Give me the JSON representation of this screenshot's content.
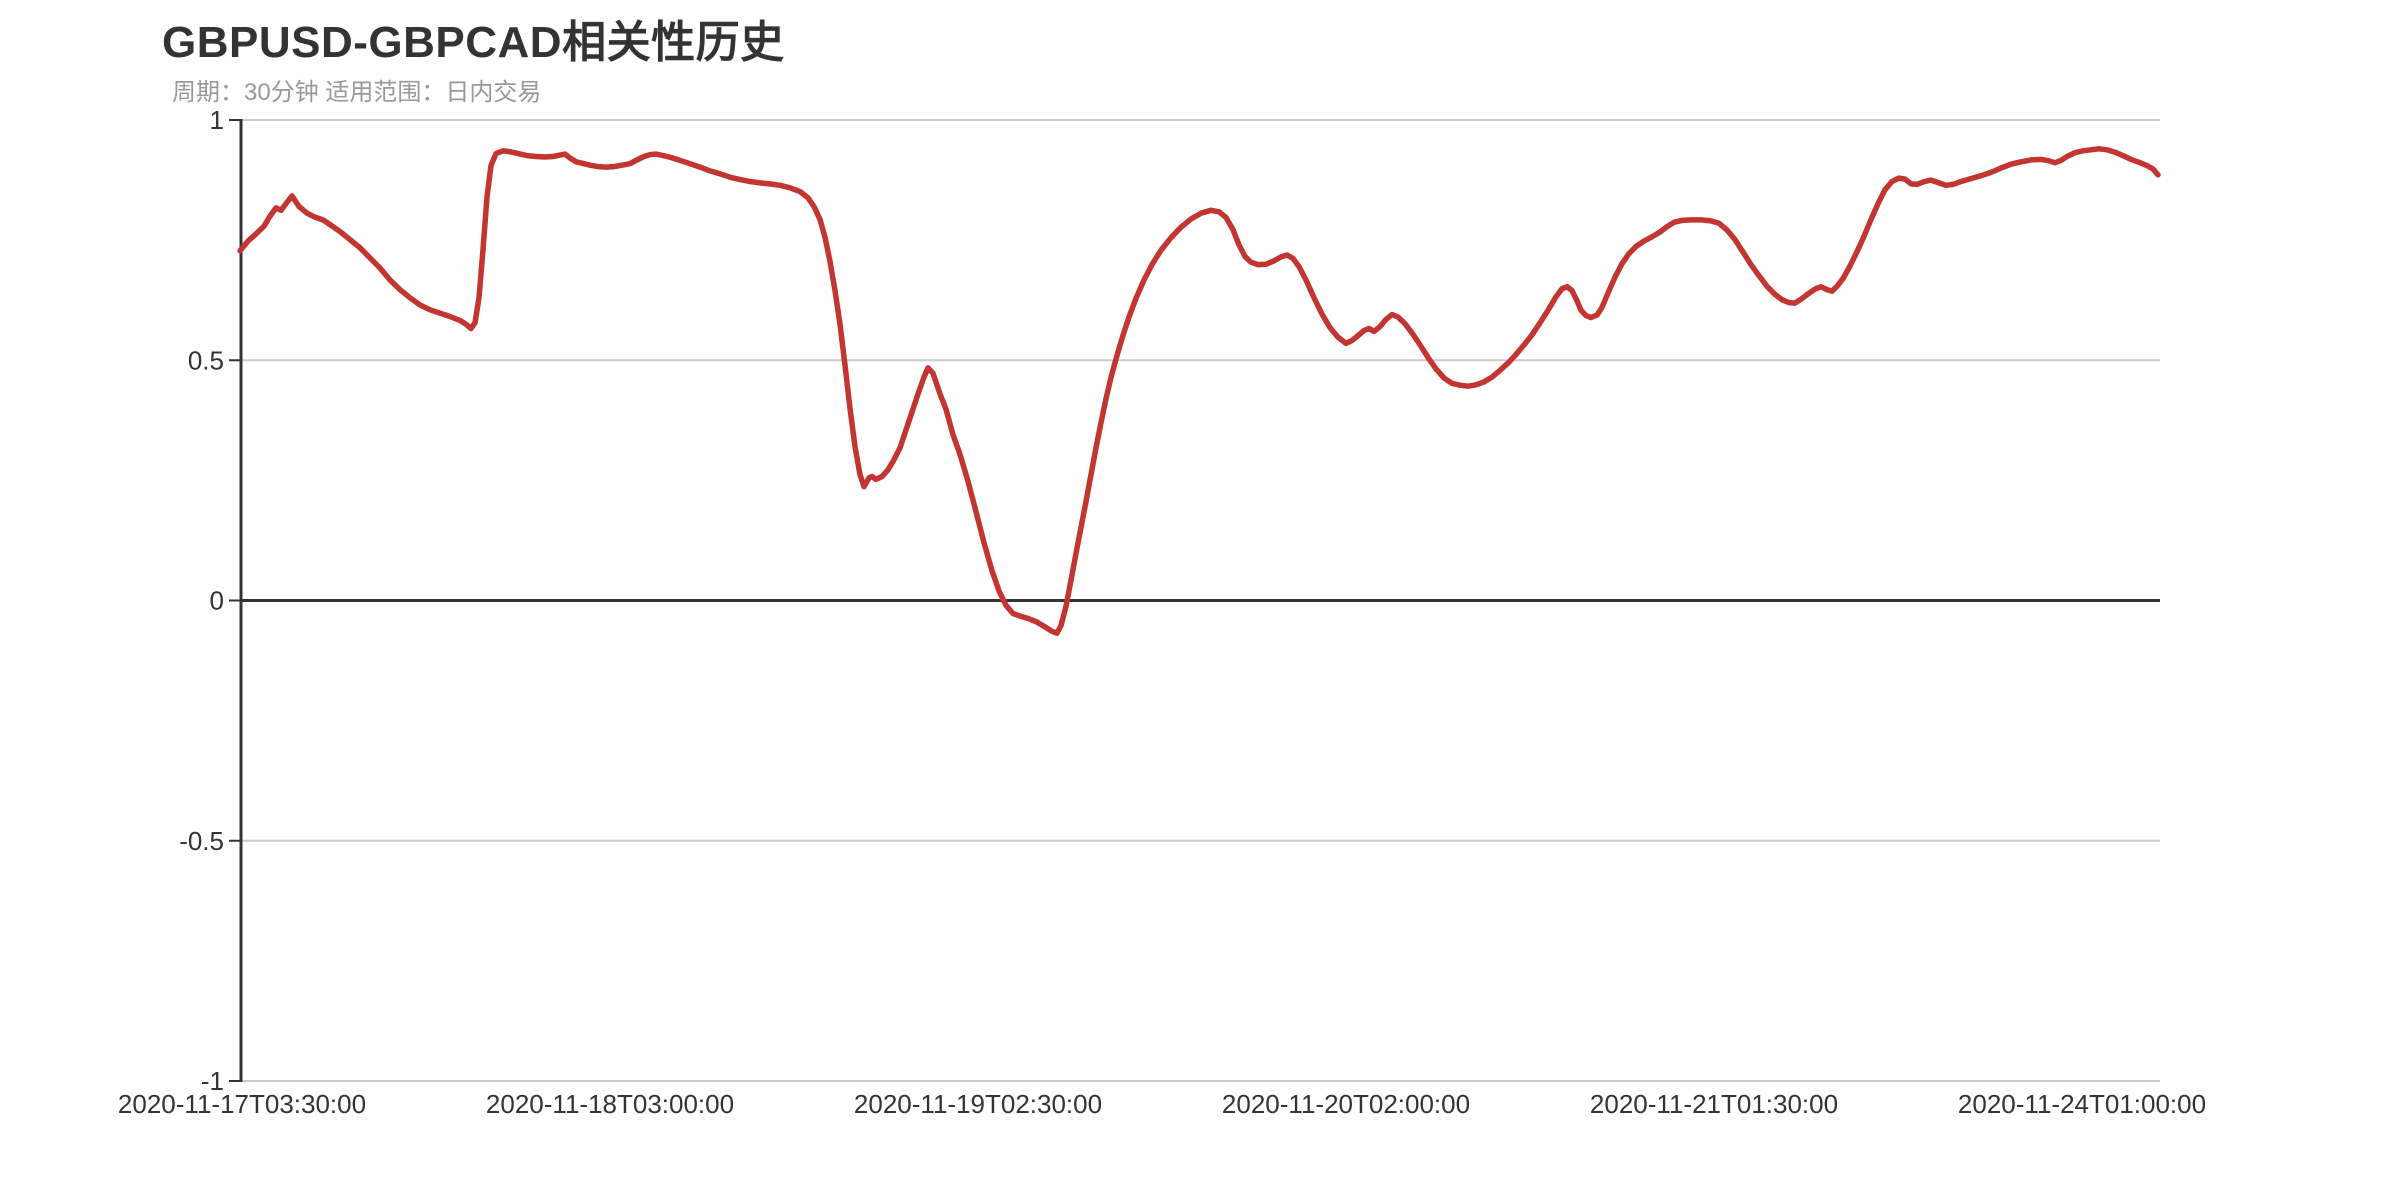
{
  "title": "GBPUSD-GBPCAD相关性历史",
  "subtitle": "周期：30分钟 适用范围：日内交易",
  "colors": {
    "line": "#c23531",
    "title_text": "#333333",
    "subtitle_text": "#999999",
    "axis_text": "#333333",
    "grid_line": "#cccccc",
    "axis_line": "#333333",
    "zero_line": "#333333",
    "background": "#ffffff"
  },
  "chart_data": {
    "type": "line",
    "title": "GBPUSD-GBPCAD相关性历史",
    "subtitle": "周期：30分钟 适用范围：日内交易",
    "xlabel": "",
    "ylabel": "",
    "ylim": [
      -1,
      1
    ],
    "grid": true,
    "legend_position": "none",
    "x_tick_labels": [
      "2020-11-17T03:30:00",
      "2020-11-18T03:00:00",
      "2020-11-19T02:30:00",
      "2020-11-20T02:00:00",
      "2020-11-21T01:30:00",
      "2020-11-24T01:00:00"
    ],
    "y_ticks": [
      {
        "label": "1",
        "value": 1
      },
      {
        "label": "0.5",
        "value": 0.5
      },
      {
        "label": "0",
        "value": 0
      },
      {
        "label": "-0.5",
        "value": -0.5
      },
      {
        "label": "-1",
        "value": -1
      }
    ],
    "series": [
      {
        "name": "GBPUSD-GBPCAD相关性",
        "color": "#c23531",
        "x_unit": "px",
        "points": [
          [
            240,
            0.728
          ],
          [
            248,
            0.748
          ],
          [
            256,
            0.763
          ],
          [
            264,
            0.779
          ],
          [
            270,
            0.8
          ],
          [
            276,
            0.817
          ],
          [
            281,
            0.812
          ],
          [
            286,
            0.826
          ],
          [
            292,
            0.842
          ],
          [
            299,
            0.82
          ],
          [
            307,
            0.806
          ],
          [
            315,
            0.798
          ],
          [
            323,
            0.792
          ],
          [
            331,
            0.781
          ],
          [
            340,
            0.768
          ],
          [
            350,
            0.751
          ],
          [
            360,
            0.734
          ],
          [
            370,
            0.713
          ],
          [
            380,
            0.692
          ],
          [
            390,
            0.667
          ],
          [
            400,
            0.647
          ],
          [
            410,
            0.63
          ],
          [
            420,
            0.615
          ],
          [
            430,
            0.605
          ],
          [
            440,
            0.598
          ],
          [
            450,
            0.591
          ],
          [
            460,
            0.583
          ],
          [
            466,
            0.575
          ],
          [
            471,
            0.566
          ],
          [
            475,
            0.578
          ],
          [
            479,
            0.63
          ],
          [
            483,
            0.73
          ],
          [
            487,
            0.84
          ],
          [
            491,
            0.905
          ],
          [
            496,
            0.93
          ],
          [
            503,
            0.936
          ],
          [
            510,
            0.934
          ],
          [
            518,
            0.93
          ],
          [
            527,
            0.926
          ],
          [
            536,
            0.924
          ],
          [
            545,
            0.923
          ],
          [
            553,
            0.924
          ],
          [
            560,
            0.927
          ],
          [
            565,
            0.929
          ],
          [
            570,
            0.921
          ],
          [
            576,
            0.913
          ],
          [
            582,
            0.91
          ],
          [
            590,
            0.906
          ],
          [
            598,
            0.903
          ],
          [
            606,
            0.902
          ],
          [
            614,
            0.903
          ],
          [
            622,
            0.906
          ],
          [
            630,
            0.909
          ],
          [
            637,
            0.917
          ],
          [
            644,
            0.924
          ],
          [
            650,
            0.928
          ],
          [
            656,
            0.929
          ],
          [
            663,
            0.926
          ],
          [
            671,
            0.922
          ],
          [
            680,
            0.916
          ],
          [
            690,
            0.909
          ],
          [
            700,
            0.902
          ],
          [
            710,
            0.894
          ],
          [
            720,
            0.888
          ],
          [
            730,
            0.881
          ],
          [
            740,
            0.876
          ],
          [
            750,
            0.872
          ],
          [
            760,
            0.869
          ],
          [
            770,
            0.867
          ],
          [
            780,
            0.864
          ],
          [
            790,
            0.859
          ],
          [
            800,
            0.851
          ],
          [
            808,
            0.838
          ],
          [
            814,
            0.82
          ],
          [
            820,
            0.793
          ],
          [
            825,
            0.756
          ],
          [
            830,
            0.706
          ],
          [
            835,
            0.645
          ],
          [
            840,
            0.575
          ],
          [
            845,
            0.49
          ],
          [
            850,
            0.4
          ],
          [
            855,
            0.32
          ],
          [
            860,
            0.262
          ],
          [
            864,
            0.237
          ],
          [
            869,
            0.255
          ],
          [
            872,
            0.258
          ],
          [
            876,
            0.252
          ],
          [
            882,
            0.258
          ],
          [
            888,
            0.272
          ],
          [
            894,
            0.293
          ],
          [
            900,
            0.318
          ],
          [
            906,
            0.355
          ],
          [
            912,
            0.392
          ],
          [
            918,
            0.43
          ],
          [
            924,
            0.465
          ],
          [
            928,
            0.484
          ],
          [
            933,
            0.473
          ],
          [
            940,
            0.43
          ],
          [
            946,
            0.398
          ],
          [
            953,
            0.345
          ],
          [
            960,
            0.304
          ],
          [
            968,
            0.248
          ],
          [
            976,
            0.185
          ],
          [
            984,
            0.12
          ],
          [
            992,
            0.062
          ],
          [
            999,
            0.02
          ],
          [
            1006,
            -0.01
          ],
          [
            1013,
            -0.027
          ],
          [
            1021,
            -0.033
          ],
          [
            1029,
            -0.038
          ],
          [
            1037,
            -0.045
          ],
          [
            1045,
            -0.055
          ],
          [
            1052,
            -0.064
          ],
          [
            1057,
            -0.068
          ],
          [
            1061,
            -0.052
          ],
          [
            1066,
            -0.012
          ],
          [
            1071,
            0.042
          ],
          [
            1076,
            0.098
          ],
          [
            1081,
            0.152
          ],
          [
            1086,
            0.206
          ],
          [
            1091,
            0.262
          ],
          [
            1096,
            0.318
          ],
          [
            1101,
            0.37
          ],
          [
            1106,
            0.42
          ],
          [
            1111,
            0.464
          ],
          [
            1117,
            0.51
          ],
          [
            1123,
            0.552
          ],
          [
            1129,
            0.59
          ],
          [
            1136,
            0.629
          ],
          [
            1144,
            0.667
          ],
          [
            1152,
            0.699
          ],
          [
            1161,
            0.729
          ],
          [
            1171,
            0.755
          ],
          [
            1181,
            0.777
          ],
          [
            1191,
            0.794
          ],
          [
            1201,
            0.806
          ],
          [
            1211,
            0.812
          ],
          [
            1219,
            0.809
          ],
          [
            1226,
            0.797
          ],
          [
            1233,
            0.772
          ],
          [
            1239,
            0.74
          ],
          [
            1245,
            0.716
          ],
          [
            1251,
            0.704
          ],
          [
            1258,
            0.699
          ],
          [
            1266,
            0.7
          ],
          [
            1274,
            0.707
          ],
          [
            1281,
            0.715
          ],
          [
            1287,
            0.719
          ],
          [
            1293,
            0.712
          ],
          [
            1299,
            0.695
          ],
          [
            1306,
            0.667
          ],
          [
            1314,
            0.63
          ],
          [
            1322,
            0.596
          ],
          [
            1330,
            0.568
          ],
          [
            1338,
            0.548
          ],
          [
            1346,
            0.535
          ],
          [
            1352,
            0.541
          ],
          [
            1358,
            0.551
          ],
          [
            1364,
            0.562
          ],
          [
            1369,
            0.566
          ],
          [
            1374,
            0.56
          ],
          [
            1380,
            0.57
          ],
          [
            1386,
            0.585
          ],
          [
            1392,
            0.595
          ],
          [
            1398,
            0.59
          ],
          [
            1405,
            0.576
          ],
          [
            1412,
            0.557
          ],
          [
            1420,
            0.532
          ],
          [
            1428,
            0.506
          ],
          [
            1436,
            0.482
          ],
          [
            1444,
            0.463
          ],
          [
            1452,
            0.452
          ],
          [
            1460,
            0.448
          ],
          [
            1468,
            0.446
          ],
          [
            1476,
            0.449
          ],
          [
            1484,
            0.455
          ],
          [
            1492,
            0.465
          ],
          [
            1500,
            0.479
          ],
          [
            1508,
            0.494
          ],
          [
            1516,
            0.512
          ],
          [
            1524,
            0.532
          ],
          [
            1532,
            0.553
          ],
          [
            1540,
            0.578
          ],
          [
            1548,
            0.604
          ],
          [
            1556,
            0.632
          ],
          [
            1562,
            0.649
          ],
          [
            1567,
            0.653
          ],
          [
            1572,
            0.645
          ],
          [
            1577,
            0.624
          ],
          [
            1581,
            0.604
          ],
          [
            1586,
            0.593
          ],
          [
            1591,
            0.589
          ],
          [
            1597,
            0.594
          ],
          [
            1602,
            0.61
          ],
          [
            1608,
            0.64
          ],
          [
            1615,
            0.673
          ],
          [
            1622,
            0.701
          ],
          [
            1629,
            0.722
          ],
          [
            1636,
            0.737
          ],
          [
            1644,
            0.748
          ],
          [
            1652,
            0.757
          ],
          [
            1660,
            0.767
          ],
          [
            1667,
            0.778
          ],
          [
            1674,
            0.787
          ],
          [
            1682,
            0.791
          ],
          [
            1691,
            0.792
          ],
          [
            1701,
            0.792
          ],
          [
            1711,
            0.79
          ],
          [
            1719,
            0.785
          ],
          [
            1727,
            0.771
          ],
          [
            1735,
            0.751
          ],
          [
            1743,
            0.725
          ],
          [
            1751,
            0.699
          ],
          [
            1759,
            0.676
          ],
          [
            1767,
            0.654
          ],
          [
            1775,
            0.637
          ],
          [
            1782,
            0.626
          ],
          [
            1789,
            0.62
          ],
          [
            1795,
            0.619
          ],
          [
            1801,
            0.627
          ],
          [
            1808,
            0.638
          ],
          [
            1815,
            0.648
          ],
          [
            1821,
            0.653
          ],
          [
            1827,
            0.647
          ],
          [
            1832,
            0.644
          ],
          [
            1837,
            0.654
          ],
          [
            1843,
            0.67
          ],
          [
            1850,
            0.696
          ],
          [
            1857,
            0.726
          ],
          [
            1864,
            0.758
          ],
          [
            1871,
            0.793
          ],
          [
            1878,
            0.826
          ],
          [
            1885,
            0.855
          ],
          [
            1892,
            0.872
          ],
          [
            1899,
            0.879
          ],
          [
            1905,
            0.877
          ],
          [
            1911,
            0.867
          ],
          [
            1917,
            0.866
          ],
          [
            1923,
            0.871
          ],
          [
            1931,
            0.875
          ],
          [
            1939,
            0.869
          ],
          [
            1946,
            0.864
          ],
          [
            1953,
            0.866
          ],
          [
            1961,
            0.872
          ],
          [
            1971,
            0.878
          ],
          [
            1981,
            0.884
          ],
          [
            1991,
            0.891
          ],
          [
            2001,
            0.9
          ],
          [
            2011,
            0.908
          ],
          [
            2021,
            0.913
          ],
          [
            2031,
            0.917
          ],
          [
            2041,
            0.918
          ],
          [
            2049,
            0.915
          ],
          [
            2055,
            0.911
          ],
          [
            2061,
            0.916
          ],
          [
            2067,
            0.924
          ],
          [
            2075,
            0.932
          ],
          [
            2083,
            0.936
          ],
          [
            2091,
            0.938
          ],
          [
            2099,
            0.94
          ],
          [
            2107,
            0.938
          ],
          [
            2115,
            0.933
          ],
          [
            2123,
            0.926
          ],
          [
            2131,
            0.918
          ],
          [
            2139,
            0.912
          ],
          [
            2147,
            0.905
          ],
          [
            2153,
            0.898
          ],
          [
            2158,
            0.886
          ]
        ]
      }
    ]
  }
}
